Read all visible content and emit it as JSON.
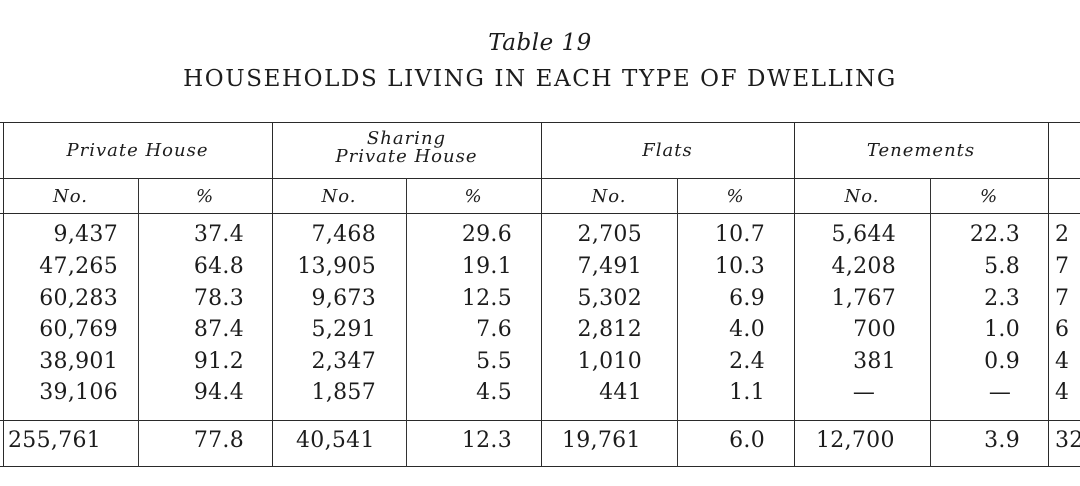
{
  "title": "Table 19",
  "heading": "HOUSEHOLDS LIVING IN EACH TYPE OF DWELLING",
  "groups": [
    {
      "label_line1": "Private House",
      "label_line2": ""
    },
    {
      "label_line1": "Sharing",
      "label_line2": "Private House"
    },
    {
      "label_line1": "Flats",
      "label_line2": ""
    },
    {
      "label_line1": "Tenements",
      "label_line2": ""
    }
  ],
  "sub_headers": [
    "No.",
    "%",
    "No.",
    "%",
    "No.",
    "%",
    "No.",
    "%"
  ],
  "rows": [
    [
      "9,437",
      "37.4",
      "7,468",
      "29.6",
      "2,705",
      "10.7",
      "5,644",
      "22.3",
      "2"
    ],
    [
      "47,265",
      "64.8",
      "13,905",
      "19.1",
      "7,491",
      "10.3",
      "4,208",
      "5.8",
      "7"
    ],
    [
      "60,283",
      "78.3",
      "9,673",
      "12.5",
      "5,302",
      "6.9",
      "1,767",
      "2.3",
      "7"
    ],
    [
      "60,769",
      "87.4",
      "5,291",
      "7.6",
      "2,812",
      "4.0",
      "700",
      "1.0",
      "6"
    ],
    [
      "38,901",
      "91.2",
      "2,347",
      "5.5",
      "1,010",
      "2.4",
      "381",
      "0.9",
      "4"
    ],
    [
      "39,106",
      "94.4",
      "1,857",
      "4.5",
      "441",
      "1.1",
      "—",
      "—",
      "4"
    ]
  ],
  "total": [
    "255,761",
    "77.8",
    "40,541",
    "12.3",
    "19,761",
    "6.0",
    "12,700",
    "3.9",
    "32"
  ]
}
